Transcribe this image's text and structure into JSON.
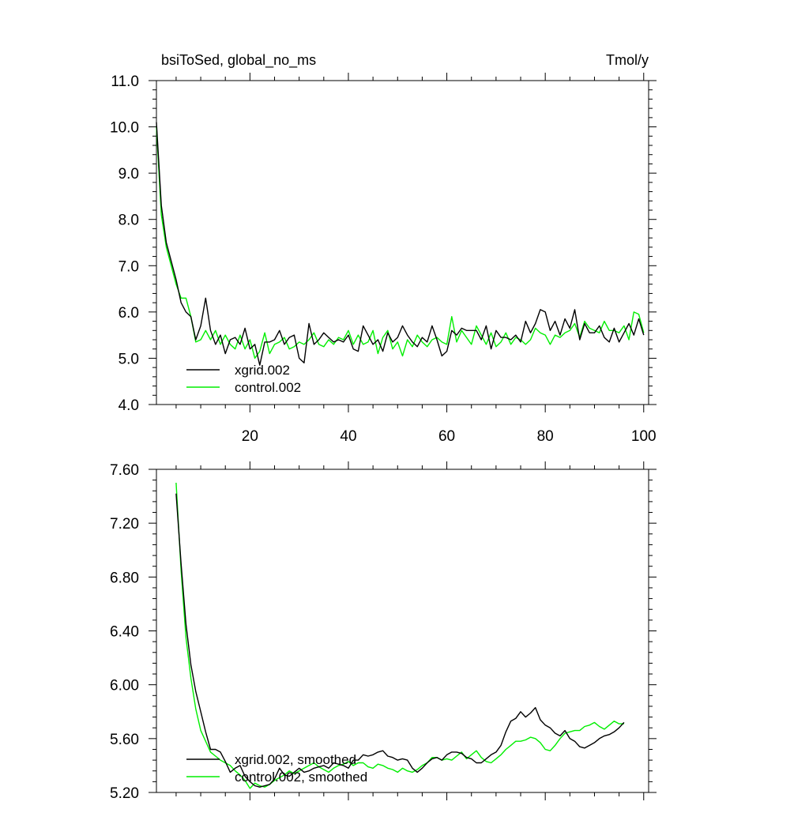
{
  "chart_data": [
    {
      "type": "line",
      "title": "bsiToSed, global_no_ms",
      "units_label": "Tmol/y",
      "xlim": [
        1,
        101
      ],
      "ylim": [
        4.0,
        11.0
      ],
      "ytick_labels": [
        "4.0",
        "5.0",
        "6.0",
        "7.0",
        "8.0",
        "9.0",
        "10.0",
        "11.0"
      ],
      "yticks": [
        4.0,
        5.0,
        6.0,
        7.0,
        8.0,
        9.0,
        10.0,
        11.0
      ],
      "xtick_labels": [
        "20",
        "40",
        "60",
        "80",
        "100"
      ],
      "xticks": [
        20,
        40,
        60,
        80,
        100
      ],
      "legend_position": "bottom-left",
      "series": [
        {
          "name": "xgrid.002",
          "color": "#000000",
          "x": [
            1,
            2,
            3,
            4,
            5,
            6,
            7,
            8,
            9,
            10,
            11,
            12,
            13,
            14,
            15,
            16,
            17,
            18,
            19,
            20,
            21,
            22,
            23,
            24,
            25,
            26,
            27,
            28,
            29,
            30,
            31,
            32,
            33,
            34,
            35,
            36,
            37,
            38,
            39,
            40,
            41,
            42,
            43,
            44,
            45,
            46,
            47,
            48,
            49,
            50,
            51,
            52,
            53,
            54,
            55,
            56,
            57,
            58,
            59,
            60,
            61,
            62,
            63,
            64,
            65,
            66,
            67,
            68,
            69,
            70,
            71,
            72,
            73,
            74,
            75,
            76,
            77,
            78,
            79,
            80,
            81,
            82,
            83,
            84,
            85,
            86,
            87,
            88,
            89,
            90,
            91,
            92,
            93,
            94,
            95,
            96,
            97,
            98,
            99,
            100
          ],
          "values": [
            10.1,
            8.3,
            7.5,
            7.1,
            6.7,
            6.2,
            6.0,
            5.9,
            5.4,
            5.7,
            6.3,
            5.6,
            5.3,
            5.5,
            5.1,
            5.4,
            5.45,
            5.3,
            5.65,
            5.2,
            5.3,
            4.85,
            5.35,
            5.35,
            5.4,
            5.6,
            5.3,
            5.45,
            5.5,
            5.0,
            4.9,
            5.75,
            5.3,
            5.4,
            5.55,
            5.45,
            5.35,
            5.4,
            5.35,
            5.5,
            5.2,
            5.15,
            5.7,
            5.5,
            5.3,
            5.4,
            5.15,
            5.55,
            5.35,
            5.45,
            5.7,
            5.5,
            5.35,
            5.25,
            5.45,
            5.35,
            5.7,
            5.4,
            5.05,
            5.15,
            5.6,
            5.5,
            5.65,
            5.6,
            5.6,
            5.6,
            5.4,
            5.7,
            5.2,
            5.6,
            5.45,
            5.45,
            5.4,
            5.5,
            5.35,
            5.8,
            5.55,
            5.75,
            6.05,
            6.0,
            5.6,
            5.8,
            5.5,
            5.85,
            5.65,
            6.05,
            5.4,
            5.75,
            5.55,
            5.55,
            5.7,
            5.45,
            5.35,
            5.65,
            5.35,
            5.55,
            5.75,
            5.5,
            5.85,
            5.5
          ]
        },
        {
          "name": "control.002",
          "color": "#00ee00",
          "x": [
            1,
            2,
            3,
            4,
            5,
            6,
            7,
            8,
            9,
            10,
            11,
            12,
            13,
            14,
            15,
            16,
            17,
            18,
            19,
            20,
            21,
            22,
            23,
            24,
            25,
            26,
            27,
            28,
            29,
            30,
            31,
            32,
            33,
            34,
            35,
            36,
            37,
            38,
            39,
            40,
            41,
            42,
            43,
            44,
            45,
            46,
            47,
            48,
            49,
            50,
            51,
            52,
            53,
            54,
            55,
            56,
            57,
            58,
            59,
            60,
            61,
            62,
            63,
            64,
            65,
            66,
            67,
            68,
            69,
            70,
            71,
            72,
            73,
            74,
            75,
            76,
            77,
            78,
            79,
            80,
            81,
            82,
            83,
            84,
            85,
            86,
            87,
            88,
            89,
            90,
            91,
            92,
            93,
            94,
            95,
            96,
            97,
            98,
            99,
            100
          ],
          "values": [
            10.0,
            8.1,
            7.4,
            7.0,
            6.6,
            6.3,
            6.3,
            5.9,
            5.35,
            5.4,
            5.6,
            5.4,
            5.6,
            5.3,
            5.5,
            5.3,
            5.2,
            5.5,
            5.2,
            5.4,
            5.0,
            5.15,
            5.55,
            5.1,
            5.3,
            5.35,
            5.45,
            5.2,
            5.25,
            5.35,
            5.3,
            5.4,
            5.55,
            5.3,
            5.25,
            5.4,
            5.3,
            5.45,
            5.4,
            5.6,
            5.3,
            5.5,
            5.3,
            5.35,
            5.6,
            5.1,
            5.45,
            5.6,
            5.2,
            5.35,
            5.05,
            5.4,
            5.25,
            5.5,
            5.35,
            5.25,
            5.4,
            5.45,
            5.35,
            5.3,
            5.9,
            5.35,
            5.6,
            5.45,
            5.3,
            5.7,
            5.5,
            5.3,
            5.55,
            5.25,
            5.35,
            5.55,
            5.3,
            5.45,
            5.4,
            5.3,
            5.4,
            5.65,
            5.55,
            5.5,
            5.3,
            5.5,
            5.45,
            5.55,
            5.6,
            5.75,
            5.45,
            5.8,
            5.65,
            5.6,
            5.55,
            5.8,
            5.6,
            5.6,
            5.55,
            5.7,
            5.4,
            6.0,
            5.95,
            5.55
          ]
        }
      ]
    },
    {
      "type": "line",
      "xlim": [
        1,
        101
      ],
      "ylim": [
        5.2,
        7.6
      ],
      "ytick_labels": [
        "5.20",
        "5.60",
        "6.00",
        "6.40",
        "6.80",
        "7.20",
        "7.60"
      ],
      "yticks": [
        5.2,
        5.6,
        6.0,
        6.4,
        6.8,
        7.2,
        7.6
      ],
      "xticks": [
        20,
        40,
        60,
        80,
        100
      ],
      "legend_position": "bottom-left",
      "series": [
        {
          "name": "xgrid.002, smoothed",
          "color": "#000000",
          "x": [
            5,
            6,
            7,
            8,
            9,
            10,
            11,
            12,
            13,
            14,
            15,
            16,
            17,
            18,
            19,
            20,
            21,
            22,
            23,
            24,
            25,
            26,
            27,
            28,
            29,
            30,
            31,
            32,
            33,
            34,
            35,
            36,
            37,
            38,
            39,
            40,
            41,
            42,
            43,
            44,
            45,
            46,
            47,
            48,
            49,
            50,
            51,
            52,
            53,
            54,
            55,
            56,
            57,
            58,
            59,
            60,
            61,
            62,
            63,
            64,
            65,
            66,
            67,
            68,
            69,
            70,
            71,
            72,
            73,
            74,
            75,
            76,
            77,
            78,
            79,
            80,
            81,
            82,
            83,
            84,
            85,
            86,
            87,
            88,
            89,
            90,
            91,
            92,
            93,
            94,
            95,
            96
          ],
          "values": [
            7.42,
            6.9,
            6.45,
            6.15,
            5.95,
            5.8,
            5.65,
            5.52,
            5.52,
            5.5,
            5.43,
            5.35,
            5.38,
            5.4,
            5.32,
            5.28,
            5.25,
            5.24,
            5.25,
            5.26,
            5.3,
            5.38,
            5.33,
            5.32,
            5.35,
            5.38,
            5.35,
            5.36,
            5.38,
            5.39,
            5.4,
            5.38,
            5.42,
            5.41,
            5.4,
            5.38,
            5.44,
            5.44,
            5.48,
            5.47,
            5.48,
            5.5,
            5.51,
            5.47,
            5.46,
            5.44,
            5.45,
            5.44,
            5.38,
            5.35,
            5.38,
            5.42,
            5.45,
            5.46,
            5.44,
            5.48,
            5.5,
            5.5,
            5.49,
            5.46,
            5.45,
            5.42,
            5.42,
            5.45,
            5.48,
            5.5,
            5.55,
            5.65,
            5.73,
            5.75,
            5.8,
            5.76,
            5.79,
            5.83,
            5.74,
            5.7,
            5.68,
            5.64,
            5.62,
            5.66,
            5.6,
            5.58,
            5.54,
            5.53,
            5.55,
            5.57,
            5.6,
            5.62,
            5.63,
            5.65,
            5.68,
            5.72
          ]
        },
        {
          "name": "control.002, smoothed",
          "color": "#00ee00",
          "x": [
            5,
            6,
            7,
            8,
            9,
            10,
            11,
            12,
            13,
            14,
            15,
            16,
            17,
            18,
            19,
            20,
            21,
            22,
            23,
            24,
            25,
            26,
            27,
            28,
            29,
            30,
            31,
            32,
            33,
            34,
            35,
            36,
            37,
            38,
            39,
            40,
            41,
            42,
            43,
            44,
            45,
            46,
            47,
            48,
            49,
            50,
            51,
            52,
            53,
            54,
            55,
            56,
            57,
            58,
            59,
            60,
            61,
            62,
            63,
            64,
            65,
            66,
            67,
            68,
            69,
            70,
            71,
            72,
            73,
            74,
            75,
            76,
            77,
            78,
            79,
            80,
            81,
            82,
            83,
            84,
            85,
            86,
            87,
            88,
            89,
            90,
            91,
            92,
            93,
            94,
            95,
            96
          ],
          "values": [
            7.5,
            6.85,
            6.35,
            6.05,
            5.82,
            5.66,
            5.58,
            5.5,
            5.47,
            5.44,
            5.42,
            5.4,
            5.36,
            5.33,
            5.29,
            5.23,
            5.27,
            5.25,
            5.24,
            5.26,
            5.29,
            5.31,
            5.33,
            5.36,
            5.34,
            5.36,
            5.38,
            5.4,
            5.42,
            5.39,
            5.37,
            5.35,
            5.38,
            5.4,
            5.41,
            5.43,
            5.4,
            5.42,
            5.42,
            5.39,
            5.38,
            5.41,
            5.4,
            5.38,
            5.37,
            5.35,
            5.38,
            5.36,
            5.35,
            5.37,
            5.4,
            5.42,
            5.46,
            5.46,
            5.44,
            5.45,
            5.44,
            5.47,
            5.5,
            5.45,
            5.48,
            5.51,
            5.46,
            5.43,
            5.42,
            5.45,
            5.48,
            5.52,
            5.55,
            5.58,
            5.58,
            5.59,
            5.61,
            5.6,
            5.57,
            5.52,
            5.51,
            5.55,
            5.6,
            5.64,
            5.65,
            5.66,
            5.66,
            5.69,
            5.7,
            5.72,
            5.69,
            5.67,
            5.7,
            5.73,
            5.71,
            5.71
          ]
        }
      ]
    }
  ]
}
